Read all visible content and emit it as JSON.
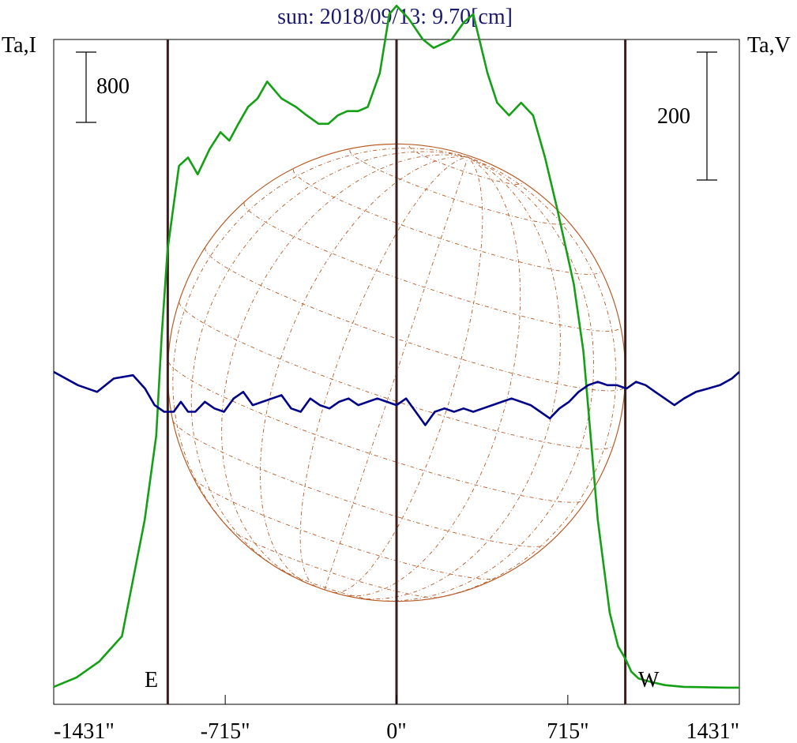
{
  "chart_data": {
    "type": "line",
    "title": "sun: 2018/09/13: 9.70[cm]",
    "left_axis_label": "Ta,I",
    "right_axis_label": "Ta,V",
    "x_tick_labels": [
      "-1431\"",
      "-715\"",
      "0\"",
      "715\"",
      "1431\""
    ],
    "x_ticks": [
      -1431,
      -715,
      0,
      715,
      1431
    ],
    "xlim": [
      -1431,
      1431
    ],
    "disk_radius": 955,
    "limb_labels": {
      "east": "E",
      "west": "W"
    },
    "scale_bars": [
      {
        "axis": "left",
        "label": "800",
        "value": 800
      },
      {
        "axis": "right",
        "label": "200",
        "value": 200
      }
    ],
    "left_ylim": [
      0,
      7700
    ],
    "right_ylim": [
      -500,
      500
    ],
    "colors": {
      "stokes_I": "#14a014",
      "stokes_V": "#000088",
      "disk": "#b85c28",
      "markers": "#3a1e1e",
      "title": "#1a1a6e"
    },
    "series": [
      {
        "axis": "left",
        "x": [
          -1431,
          -1336,
          -1241,
          -1146,
          -1051,
          -1003,
          -980,
          -956,
          -932,
          -908,
          -870,
          -830,
          -780,
          -735,
          -698,
          -660,
          -620,
          -580,
          -540,
          -480,
          -420,
          -375,
          -325,
          -285,
          -245,
          -205,
          -160,
          -120,
          -70,
          -30,
          0,
          50,
          110,
          155,
          230,
          280,
          320,
          380,
          420,
          470,
          520,
          570,
          620,
          670,
          740,
          780,
          840,
          890,
          925,
          956,
          980,
          1010,
          1060,
          1120,
          1200,
          1290,
          1380,
          1431
        ],
        "values": [
          20,
          130,
          320,
          620,
          2000,
          3000,
          4200,
          5200,
          5700,
          6200,
          6300,
          6100,
          6400,
          6600,
          6500,
          6700,
          6900,
          7000,
          7200,
          7000,
          6900,
          6800,
          6700,
          6700,
          6800,
          6850,
          6850,
          6900,
          7300,
          8000,
          8100,
          7950,
          7700,
          7600,
          7700,
          7900,
          8000,
          7300,
          6950,
          6800,
          6950,
          6800,
          6300,
          5700,
          4800,
          4000,
          2000,
          900,
          500,
          350,
          200,
          120,
          80,
          40,
          20,
          15,
          10,
          10
        ]
      },
      {
        "axis": "right",
        "x": [
          -1431,
          -1330,
          -1250,
          -1180,
          -1100,
          -1050,
          -1010,
          -970,
          -930,
          -900,
          -870,
          -840,
          -800,
          -760,
          -720,
          -680,
          -640,
          -600,
          -560,
          -520,
          -480,
          -440,
          -400,
          -360,
          -320,
          -280,
          -240,
          -200,
          -160,
          -120,
          -80,
          -40,
          0,
          40,
          80,
          120,
          160,
          200,
          240,
          280,
          320,
          360,
          400,
          440,
          480,
          520,
          560,
          600,
          640,
          680,
          720,
          760,
          800,
          840,
          880,
          920,
          960,
          1000,
          1040,
          1080,
          1120,
          1160,
          1200,
          1250,
          1300,
          1350,
          1400,
          1431
        ],
        "values": [
          0,
          -20,
          -30,
          -10,
          -5,
          -25,
          -50,
          -60,
          -60,
          -45,
          -60,
          -60,
          -45,
          -55,
          -60,
          -40,
          -30,
          -50,
          -45,
          -40,
          -35,
          -55,
          -60,
          -40,
          -50,
          -55,
          -45,
          -40,
          -50,
          -45,
          -40,
          -45,
          -50,
          -40,
          -60,
          -80,
          -60,
          -55,
          -60,
          -55,
          -60,
          -55,
          -50,
          -45,
          -40,
          -45,
          -50,
          -60,
          -70,
          -55,
          -45,
          -30,
          -20,
          -15,
          -20,
          -20,
          -25,
          -15,
          -20,
          -30,
          -40,
          -50,
          -40,
          -30,
          -25,
          -20,
          -10,
          0
        ]
      }
    ]
  }
}
